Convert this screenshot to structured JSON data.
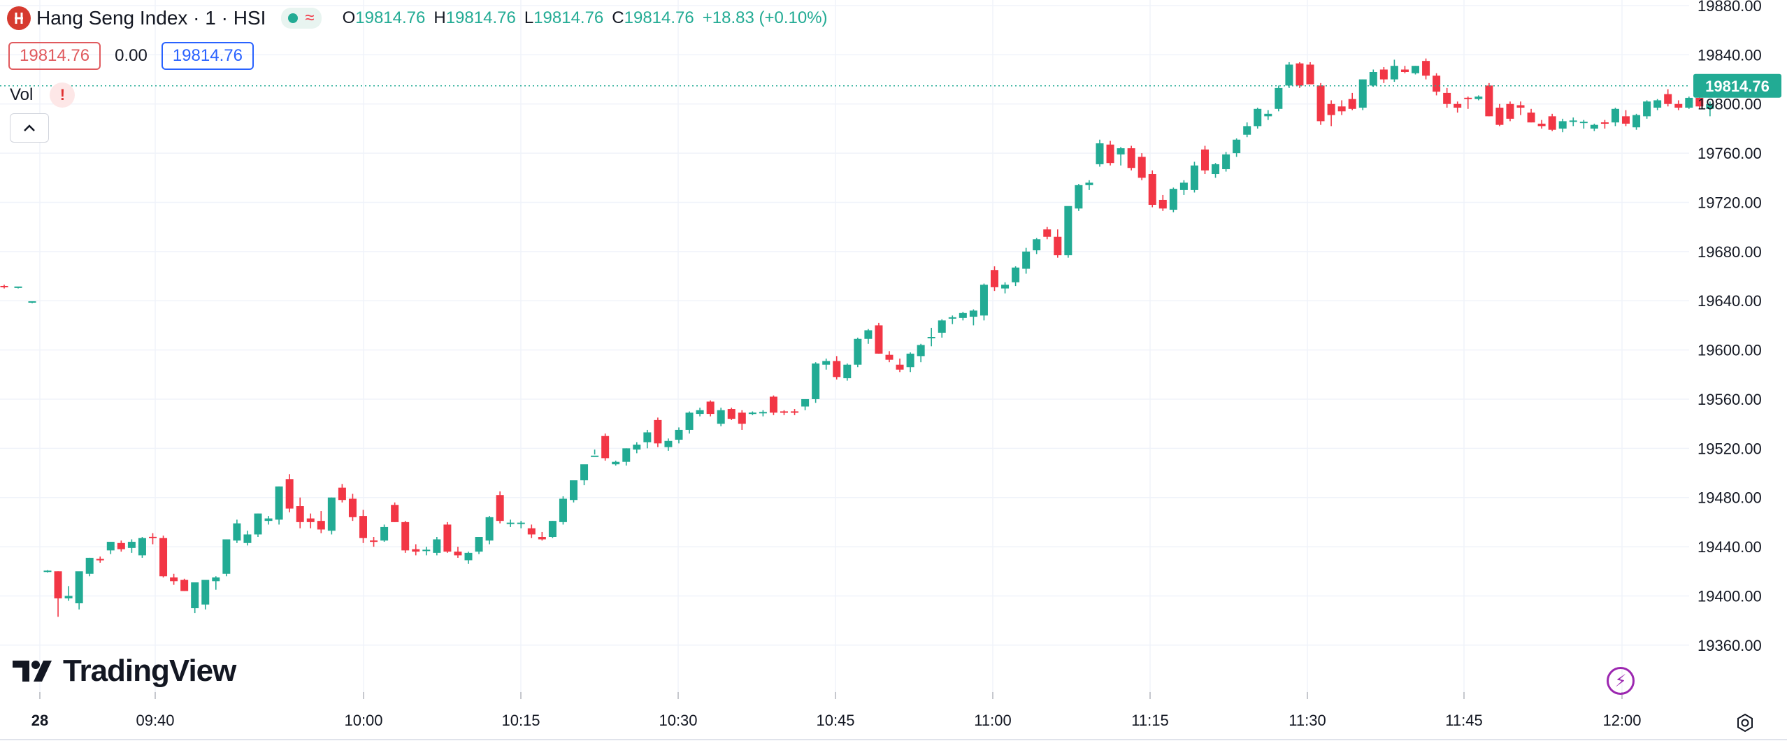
{
  "legend": {
    "symbol_name": "Hang Seng Index · 1 · HSI",
    "open_key": "O",
    "open": "19814.76",
    "high_key": "H",
    "high": "19814.76",
    "low_key": "L",
    "low": "19814.76",
    "close_key": "C",
    "close": "19814.76",
    "change": "+18.83 (+0.10%)"
  },
  "price_boxes": {
    "bid": "19814.76",
    "spread": "0.00",
    "ask": "19814.76"
  },
  "volume": {
    "label": "Vol",
    "warning": "!"
  },
  "watermark": "TradingView",
  "colors": {
    "up": "#22ab94",
    "down": "#f23645",
    "grid": "#f0f3fa",
    "price_line": "#22ab94",
    "text": "#131722"
  },
  "icons": [
    "hsi-logo-icon",
    "visibility-dot-icon",
    "wave-icon",
    "warning-icon",
    "chevron-up-icon",
    "tradingview-logo-icon",
    "lightning-icon",
    "settings-gear-icon"
  ],
  "chart_data": {
    "type": "candlestick",
    "title": "Hang Seng Index · 1 · HSI",
    "interval_minutes": 1,
    "ylim": [
      19340,
      19880
    ],
    "y_ticks": [
      "19880.00",
      "19840.00",
      "19800.00",
      "19760.00",
      "19720.00",
      "19680.00",
      "19640.00",
      "19600.00",
      "19560.00",
      "19520.00",
      "19480.00",
      "19440.00",
      "19400.00",
      "19360.00"
    ],
    "x_ticks": [
      "28",
      "09:40",
      "10:00",
      "10:15",
      "10:30",
      "10:45",
      "11:00",
      "11:15",
      "11:30",
      "11:45",
      "12:00"
    ],
    "last_price": "19814.76",
    "grid": true,
    "prior_session_tail": [
      [
        19652,
        19653,
        19650,
        19651
      ],
      [
        19651,
        19651,
        19650,
        19651
      ],
      [
        19639,
        19639,
        19638,
        19639
      ]
    ],
    "candles": [
      [
        19420,
        19421,
        19419,
        19420
      ],
      [
        19420,
        19420,
        19383,
        19398
      ],
      [
        19398,
        19408,
        19396,
        19400
      ],
      [
        19394,
        19418,
        19389,
        19420
      ],
      [
        19418,
        19431,
        19416,
        19431
      ],
      [
        19430,
        19432,
        19427,
        19429
      ],
      [
        19437,
        19444,
        19434,
        19444
      ],
      [
        19443,
        19445,
        19436,
        19438
      ],
      [
        19439,
        19446,
        19435,
        19444
      ],
      [
        19433,
        19448,
        19431,
        19447
      ],
      [
        19448,
        19451,
        19442,
        19447
      ],
      [
        19447,
        19449,
        19415,
        19416
      ],
      [
        19415,
        19418,
        19409,
        19412
      ],
      [
        19413,
        19414,
        19404,
        19404
      ],
      [
        19390,
        19410,
        19386,
        19411
      ],
      [
        19393,
        19412,
        19389,
        19413
      ],
      [
        19412,
        19416,
        19405,
        19415
      ],
      [
        19418,
        19446,
        19416,
        19446
      ],
      [
        19445,
        19462,
        19443,
        19459
      ],
      [
        19443,
        19453,
        19441,
        19450
      ],
      [
        19450,
        19467,
        19448,
        19467
      ],
      [
        19461,
        19465,
        19458,
        19463
      ],
      [
        19462,
        19489,
        19458,
        19489
      ],
      [
        19495,
        19499,
        19468,
        19471
      ],
      [
        19473,
        19480,
        19455,
        19460
      ],
      [
        19463,
        19467,
        19455,
        19460
      ],
      [
        19461,
        19469,
        19451,
        19454
      ],
      [
        19453,
        19480,
        19450,
        19480
      ],
      [
        19488,
        19491,
        19476,
        19478
      ],
      [
        19479,
        19483,
        19461,
        19464
      ],
      [
        19465,
        19470,
        19443,
        19447
      ],
      [
        19445,
        19448,
        19440,
        19444
      ],
      [
        19445,
        19458,
        19444,
        19456
      ],
      [
        19474,
        19476,
        19460,
        19460
      ],
      [
        19460,
        19461,
        19435,
        19437
      ],
      [
        19438,
        19442,
        19433,
        19436
      ],
      [
        19437,
        19440,
        19433,
        19437
      ],
      [
        19435,
        19448,
        19433,
        19446
      ],
      [
        19458,
        19460,
        19435,
        19436
      ],
      [
        19436,
        19440,
        19431,
        19433
      ],
      [
        19429,
        19436,
        19426,
        19435
      ],
      [
        19436,
        19448,
        19434,
        19448
      ],
      [
        19445,
        19465,
        19442,
        19464
      ],
      [
        19482,
        19485,
        19459,
        19461
      ],
      [
        19459,
        19462,
        19456,
        19459
      ],
      [
        19459,
        19461,
        19455,
        19459
      ],
      [
        19455,
        19458,
        19447,
        19450
      ],
      [
        19448,
        19452,
        19445,
        19446
      ],
      [
        19448,
        19461,
        19447,
        19461
      ],
      [
        19460,
        19481,
        19458,
        19479
      ],
      [
        19478,
        19493,
        19476,
        19494
      ],
      [
        19494,
        19506,
        19490,
        19507
      ],
      [
        19513,
        19519,
        19515,
        19514
      ],
      [
        19530,
        19532,
        19510,
        19512
      ],
      [
        19507,
        19510,
        19506,
        19509
      ],
      [
        19509,
        19520,
        19506,
        19520
      ],
      [
        19519,
        19525,
        19516,
        19523
      ],
      [
        19525,
        19535,
        19520,
        19533
      ],
      [
        19543,
        19545,
        19521,
        19524
      ],
      [
        19521,
        19528,
        19518,
        19526
      ],
      [
        19527,
        19537,
        19524,
        19535
      ],
      [
        19535,
        19550,
        19532,
        19549
      ],
      [
        19548,
        19553,
        19546,
        19551
      ],
      [
        19558,
        19559,
        19546,
        19548
      ],
      [
        19540,
        19553,
        19538,
        19551
      ],
      [
        19552,
        19553,
        19543,
        19544
      ],
      [
        19549,
        19551,
        19535,
        19540
      ],
      [
        19548,
        19550,
        19547,
        19549
      ],
      [
        19549,
        19551,
        19546,
        19549
      ],
      [
        19562,
        19563,
        19547,
        19549
      ],
      [
        19550,
        19551,
        19547,
        19549
      ],
      [
        19550,
        19552,
        19547,
        19549
      ],
      [
        19554,
        19560,
        19551,
        19560
      ],
      [
        19560,
        19590,
        19557,
        19589
      ],
      [
        19588,
        19593,
        19584,
        19591
      ],
      [
        19591,
        19595,
        19576,
        19578
      ],
      [
        19577,
        19589,
        19575,
        19588
      ],
      [
        19588,
        19610,
        19586,
        19609
      ],
      [
        19609,
        19617,
        19605,
        19616
      ],
      [
        19620,
        19622,
        19597,
        19597
      ],
      [
        19596,
        19599,
        19590,
        19592
      ],
      [
        19588,
        19593,
        19582,
        19584
      ],
      [
        19586,
        19598,
        19582,
        19597
      ],
      [
        19595,
        19605,
        19590,
        19604
      ],
      [
        19610,
        19618,
        19603,
        19610
      ],
      [
        19614,
        19625,
        19610,
        19624
      ],
      [
        19626,
        19628,
        19621,
        19626
      ],
      [
        19626,
        19631,
        19624,
        19630
      ],
      [
        19627,
        19633,
        19620,
        19632
      ],
      [
        19628,
        19654,
        19624,
        19653
      ],
      [
        19665,
        19668,
        19648,
        19651
      ],
      [
        19650,
        19655,
        19646,
        19653
      ],
      [
        19655,
        19668,
        19652,
        19667
      ],
      [
        19666,
        19683,
        19662,
        19680
      ],
      [
        19681,
        19691,
        19678,
        19690
      ],
      [
        19698,
        19700,
        19690,
        19692
      ],
      [
        19692,
        19698,
        19675,
        19677
      ],
      [
        19677,
        19716,
        19675,
        19717
      ],
      [
        19715,
        19735,
        19713,
        19734
      ],
      [
        19734,
        19738,
        19730,
        19736
      ],
      [
        19751,
        19771,
        19749,
        19768
      ],
      [
        19767,
        19770,
        19750,
        19752
      ],
      [
        19759,
        19765,
        19750,
        19764
      ],
      [
        19764,
        19766,
        19746,
        19748
      ],
      [
        19757,
        19760,
        19738,
        19740
      ],
      [
        19743,
        19746,
        19716,
        19718
      ],
      [
        19722,
        19726,
        19713,
        19715
      ],
      [
        19714,
        19732,
        19712,
        19731
      ],
      [
        19730,
        19738,
        19726,
        19736
      ],
      [
        19730,
        19753,
        19728,
        19750
      ],
      [
        19763,
        19766,
        19743,
        19746
      ],
      [
        19743,
        19752,
        19740,
        19751
      ],
      [
        19747,
        19761,
        19745,
        19759
      ],
      [
        19760,
        19772,
        19757,
        19771
      ],
      [
        19775,
        19785,
        19773,
        19782
      ],
      [
        19782,
        19797,
        19780,
        19796
      ],
      [
        19790,
        19795,
        19787,
        19792
      ],
      [
        19796,
        19815,
        19794,
        19813
      ],
      [
        19815,
        19834,
        19813,
        19832
      ],
      [
        19833,
        19834,
        19813,
        19815
      ],
      [
        19832,
        19834,
        19816,
        19816
      ],
      [
        19815,
        19817,
        19783,
        19786
      ],
      [
        19800,
        19803,
        19782,
        19791
      ],
      [
        19798,
        19803,
        19791,
        19794
      ],
      [
        19804,
        19809,
        19795,
        19796
      ],
      [
        19797,
        19820,
        19795,
        19820
      ],
      [
        19815,
        19828,
        19814,
        19826
      ],
      [
        19828,
        19830,
        19817,
        19820
      ],
      [
        19820,
        19836,
        19818,
        19831
      ],
      [
        19828,
        19831,
        19825,
        19826
      ],
      [
        19825,
        19831,
        19824,
        19831
      ],
      [
        19835,
        19837,
        19820,
        19823
      ],
      [
        19823,
        19825,
        19807,
        19810
      ],
      [
        19809,
        19813,
        19797,
        19800
      ],
      [
        19800,
        19802,
        19793,
        19797
      ],
      [
        19805,
        19806,
        19796,
        19804
      ],
      [
        19804,
        19807,
        19803,
        19806
      ],
      [
        19815,
        19817,
        19790,
        19790
      ],
      [
        19797,
        19800,
        19782,
        19783
      ],
      [
        19800,
        19802,
        19786,
        19788
      ],
      [
        19799,
        19802,
        19791,
        19797
      ],
      [
        19793,
        19796,
        19785,
        19785
      ],
      [
        19784,
        19787,
        19780,
        19782
      ],
      [
        19790,
        19792,
        19778,
        19779
      ],
      [
        19780,
        19788,
        19777,
        19786
      ],
      [
        19786,
        19789,
        19782,
        19786
      ],
      [
        19785,
        19787,
        19780,
        19785
      ],
      [
        19780,
        19784,
        19778,
        19783
      ],
      [
        19785,
        19787,
        19780,
        19784
      ],
      [
        19785,
        19797,
        19782,
        19796
      ],
      [
        19790,
        19795,
        19782,
        19784
      ],
      [
        19781,
        19792,
        19779,
        19791
      ],
      [
        19790,
        19803,
        19788,
        19802
      ],
      [
        19797,
        19804,
        19795,
        19803
      ],
      [
        19808,
        19812,
        19798,
        19800
      ],
      [
        19800,
        19803,
        19795,
        19797
      ],
      [
        19797,
        19806,
        19796,
        19805
      ],
      [
        19805,
        19806,
        19796,
        19798
      ],
      [
        19796,
        19802,
        19790,
        19800
      ],
      [
        19814,
        19815,
        19813,
        19815
      ]
    ]
  }
}
